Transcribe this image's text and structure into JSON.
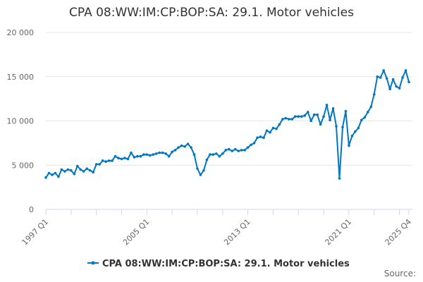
{
  "chart_data": {
    "type": "line",
    "title": "CPA 08:WW:IM:CP:BOP:SA: 29.1. Motor vehicles",
    "xlabel": "",
    "ylabel": "",
    "ylim": [
      0,
      20000
    ],
    "y_ticks": [
      0,
      5000,
      10000,
      15000,
      20000
    ],
    "y_tick_labels": [
      "0",
      "5 000",
      "10 000",
      "15 000",
      "20 000"
    ],
    "x_tick_labels": [
      "1997 Q1",
      "2005 Q1",
      "2013 Q1",
      "2021 Q1",
      "2025 Q4"
    ],
    "x_tick_indices": [
      0,
      32,
      64,
      96,
      115
    ],
    "grid": true,
    "legend_position": "bottom",
    "start_period": "1997 Q1",
    "end_period": "2025 Q4",
    "series": [
      {
        "name": "CPA 08:WW:IM:CP:BOP:SA: 29.1. Motor vehicles",
        "color": "#0077c0",
        "values": [
          3600,
          4100,
          3900,
          4100,
          3700,
          4500,
          4300,
          4500,
          4400,
          4000,
          4900,
          4500,
          4300,
          4600,
          4400,
          4200,
          5100,
          5100,
          5500,
          5400,
          5500,
          5500,
          6000,
          5800,
          5700,
          5800,
          5700,
          6400,
          5900,
          6000,
          6000,
          6200,
          6200,
          6100,
          6200,
          6300,
          6400,
          6400,
          6300,
          6000,
          6500,
          6700,
          7000,
          7200,
          7100,
          7400,
          7000,
          6200,
          4600,
          3900,
          4400,
          5600,
          6200,
          6200,
          6300,
          6000,
          6300,
          6700,
          6800,
          6600,
          6800,
          6600,
          6700,
          6700,
          7000,
          7300,
          7500,
          8100,
          8200,
          8100,
          8900,
          8700,
          9200,
          9100,
          9600,
          10200,
          10300,
          10200,
          10200,
          10500,
          10500,
          10500,
          10600,
          11000,
          10000,
          10700,
          10700,
          9600,
          10500,
          11800,
          10100,
          11400,
          9400,
          3500,
          9300,
          11100,
          7200,
          8300,
          8800,
          9200,
          10100,
          10400,
          11000,
          11600,
          13000,
          15000,
          14900,
          15700,
          14800,
          13600,
          14700,
          13900,
          13700,
          14900,
          15700,
          14400
        ]
      }
    ]
  },
  "source_label": "Source:"
}
